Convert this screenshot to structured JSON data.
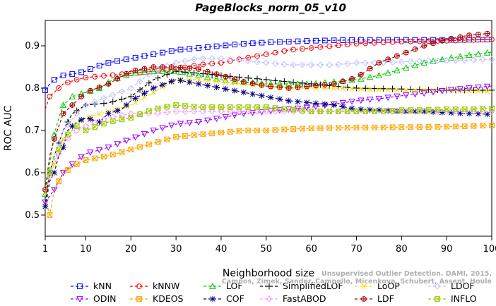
{
  "chart_data": {
    "type": "line",
    "title": "PageBlocks_norm_05_v10",
    "xlabel": "Neighborhood size",
    "ylabel": "ROC AUC",
    "xlim": [
      1,
      100
    ],
    "ylim": [
      0.45,
      0.96
    ],
    "xticks": [
      1,
      10,
      20,
      30,
      40,
      50,
      60,
      70,
      80,
      90,
      100
    ],
    "yticks": [
      0.5,
      0.6,
      0.7,
      0.8,
      0.9
    ],
    "grid": false,
    "legend_position": "bottom",
    "series": [
      {
        "name": "kNN",
        "color": "#0000ff",
        "marker": "square",
        "dash": "4,3",
        "points": [
          [
            1,
            0.795
          ],
          [
            2,
            0.81
          ],
          [
            3,
            0.82
          ],
          [
            5,
            0.83
          ],
          [
            8,
            0.835
          ],
          [
            10,
            0.84
          ],
          [
            12,
            0.85
          ],
          [
            15,
            0.86
          ],
          [
            20,
            0.87
          ],
          [
            25,
            0.88
          ],
          [
            30,
            0.89
          ],
          [
            35,
            0.895
          ],
          [
            40,
            0.9
          ],
          [
            45,
            0.905
          ],
          [
            50,
            0.908
          ],
          [
            55,
            0.91
          ],
          [
            60,
            0.912
          ],
          [
            70,
            0.914
          ],
          [
            80,
            0.914
          ],
          [
            90,
            0.914
          ],
          [
            100,
            0.915
          ]
        ]
      },
      {
        "name": "kNNW",
        "color": "#ff0000",
        "marker": "circle",
        "dash": "4,3",
        "points": [
          [
            1,
            0.75
          ],
          [
            2,
            0.78
          ],
          [
            3,
            0.79
          ],
          [
            5,
            0.81
          ],
          [
            8,
            0.82
          ],
          [
            10,
            0.825
          ],
          [
            15,
            0.83
          ],
          [
            20,
            0.835
          ],
          [
            25,
            0.84
          ],
          [
            30,
            0.845
          ],
          [
            35,
            0.855
          ],
          [
            40,
            0.86
          ],
          [
            45,
            0.87
          ],
          [
            50,
            0.88
          ],
          [
            55,
            0.89
          ],
          [
            60,
            0.895
          ],
          [
            70,
            0.905
          ],
          [
            80,
            0.91
          ],
          [
            90,
            0.912
          ],
          [
            100,
            0.915
          ]
        ]
      },
      {
        "name": "LOF",
        "color": "#00cc00",
        "marker": "triangle-up",
        "dash": "4,3",
        "points": [
          [
            1,
            0.55
          ],
          [
            2,
            0.62
          ],
          [
            3,
            0.69
          ],
          [
            4,
            0.73
          ],
          [
            5,
            0.76
          ],
          [
            7,
            0.78
          ],
          [
            10,
            0.79
          ],
          [
            13,
            0.8
          ],
          [
            16,
            0.82
          ],
          [
            20,
            0.835
          ],
          [
            25,
            0.84
          ],
          [
            30,
            0.84
          ],
          [
            35,
            0.83
          ],
          [
            40,
            0.82
          ],
          [
            45,
            0.815
          ],
          [
            50,
            0.81
          ],
          [
            55,
            0.81
          ],
          [
            60,
            0.81
          ],
          [
            65,
            0.815
          ],
          [
            70,
            0.82
          ],
          [
            75,
            0.83
          ],
          [
            80,
            0.845
          ],
          [
            85,
            0.86
          ],
          [
            90,
            0.87
          ],
          [
            95,
            0.878
          ],
          [
            100,
            0.885
          ]
        ]
      },
      {
        "name": "SimplifiedLOF",
        "color": "#000000",
        "marker": "plus",
        "dash": "4,3",
        "points": [
          [
            1,
            0.53
          ],
          [
            2,
            0.6
          ],
          [
            3,
            0.64
          ],
          [
            4,
            0.67
          ],
          [
            5,
            0.7
          ],
          [
            7,
            0.74
          ],
          [
            10,
            0.76
          ],
          [
            15,
            0.765
          ],
          [
            20,
            0.78
          ],
          [
            25,
            0.82
          ],
          [
            30,
            0.84
          ],
          [
            35,
            0.835
          ],
          [
            40,
            0.83
          ],
          [
            45,
            0.825
          ],
          [
            50,
            0.82
          ],
          [
            55,
            0.815
          ],
          [
            60,
            0.81
          ],
          [
            65,
            0.805
          ],
          [
            70,
            0.8
          ],
          [
            80,
            0.798
          ],
          [
            90,
            0.795
          ],
          [
            100,
            0.795
          ]
        ]
      },
      {
        "name": "LoOP",
        "color": "#ffd700",
        "marker": "x",
        "dash": "4,3",
        "points": [
          [
            1,
            0.52
          ],
          [
            2,
            0.58
          ],
          [
            3,
            0.62
          ],
          [
            4,
            0.65
          ],
          [
            5,
            0.68
          ],
          [
            7,
            0.71
          ],
          [
            10,
            0.73
          ],
          [
            15,
            0.745
          ],
          [
            20,
            0.76
          ],
          [
            25,
            0.79
          ],
          [
            30,
            0.82
          ],
          [
            35,
            0.82
          ],
          [
            40,
            0.815
          ],
          [
            45,
            0.81
          ],
          [
            50,
            0.805
          ],
          [
            55,
            0.8
          ],
          [
            60,
            0.8
          ],
          [
            65,
            0.8
          ],
          [
            70,
            0.798
          ],
          [
            80,
            0.795
          ],
          [
            90,
            0.795
          ],
          [
            100,
            0.792
          ]
        ]
      },
      {
        "name": "LDOF",
        "color": "#c0c0ff",
        "marker": "diamond",
        "dash": "4,3",
        "points": [
          [
            1,
            0.55
          ],
          [
            3,
            0.64
          ],
          [
            5,
            0.7
          ],
          [
            8,
            0.74
          ],
          [
            10,
            0.76
          ],
          [
            15,
            0.78
          ],
          [
            20,
            0.8
          ],
          [
            25,
            0.84
          ],
          [
            30,
            0.86
          ],
          [
            35,
            0.87
          ],
          [
            40,
            0.87
          ],
          [
            45,
            0.865
          ],
          [
            50,
            0.86
          ],
          [
            55,
            0.855
          ],
          [
            60,
            0.855
          ],
          [
            65,
            0.855
          ],
          [
            70,
            0.86
          ],
          [
            75,
            0.86
          ],
          [
            80,
            0.862
          ],
          [
            85,
            0.865
          ],
          [
            90,
            0.865
          ],
          [
            95,
            0.866
          ],
          [
            100,
            0.868
          ]
        ]
      },
      {
        "name": "ODIN",
        "color": "#9900ff",
        "marker": "triangle-down",
        "dash": "4,3",
        "points": [
          [
            1,
            0.53
          ],
          [
            3,
            0.56
          ],
          [
            5,
            0.6
          ],
          [
            8,
            0.63
          ],
          [
            10,
            0.645
          ],
          [
            15,
            0.66
          ],
          [
            20,
            0.68
          ],
          [
            25,
            0.7
          ],
          [
            30,
            0.715
          ],
          [
            35,
            0.72
          ],
          [
            40,
            0.73
          ],
          [
            45,
            0.74
          ],
          [
            50,
            0.745
          ],
          [
            55,
            0.75
          ],
          [
            60,
            0.755
          ],
          [
            65,
            0.762
          ],
          [
            70,
            0.77
          ],
          [
            75,
            0.775
          ],
          [
            80,
            0.782
          ],
          [
            85,
            0.788
          ],
          [
            90,
            0.795
          ],
          [
            95,
            0.8
          ],
          [
            100,
            0.805
          ]
        ]
      },
      {
        "name": "KDEOS",
        "color": "#ffa500",
        "marker": "square-x",
        "dash": "4,3",
        "points": [
          [
            1,
            0.55
          ],
          [
            2,
            0.5
          ],
          [
            3,
            0.56
          ],
          [
            5,
            0.6
          ],
          [
            8,
            0.62
          ],
          [
            10,
            0.63
          ],
          [
            15,
            0.64
          ],
          [
            20,
            0.655
          ],
          [
            25,
            0.67
          ],
          [
            30,
            0.685
          ],
          [
            35,
            0.69
          ],
          [
            40,
            0.695
          ],
          [
            45,
            0.7
          ],
          [
            50,
            0.7
          ],
          [
            55,
            0.703
          ],
          [
            60,
            0.705
          ],
          [
            65,
            0.706
          ],
          [
            70,
            0.707
          ],
          [
            75,
            0.707
          ],
          [
            80,
            0.708
          ],
          [
            85,
            0.708
          ],
          [
            90,
            0.709
          ],
          [
            95,
            0.71
          ],
          [
            100,
            0.712
          ]
        ]
      },
      {
        "name": "COF",
        "color": "#000080",
        "marker": "asterisk",
        "dash": "4,3",
        "points": [
          [
            1,
            0.52
          ],
          [
            2,
            0.58
          ],
          [
            3,
            0.6
          ],
          [
            4,
            0.64
          ],
          [
            5,
            0.66
          ],
          [
            6,
            0.7
          ],
          [
            8,
            0.72
          ],
          [
            10,
            0.73
          ],
          [
            13,
            0.72
          ],
          [
            15,
            0.74
          ],
          [
            18,
            0.75
          ],
          [
            20,
            0.77
          ],
          [
            25,
            0.8
          ],
          [
            30,
            0.82
          ],
          [
            35,
            0.81
          ],
          [
            40,
            0.8
          ],
          [
            45,
            0.79
          ],
          [
            50,
            0.78
          ],
          [
            55,
            0.77
          ],
          [
            60,
            0.765
          ],
          [
            65,
            0.76
          ],
          [
            70,
            0.75
          ],
          [
            75,
            0.748
          ],
          [
            80,
            0.745
          ],
          [
            85,
            0.745
          ],
          [
            90,
            0.742
          ],
          [
            95,
            0.74
          ],
          [
            100,
            0.738
          ]
        ]
      },
      {
        "name": "FastABOD",
        "color": "#ff99ff",
        "marker": "diamond",
        "dash": "4,3",
        "points": [
          [
            1,
            0.56
          ],
          [
            3,
            0.62
          ],
          [
            5,
            0.67
          ],
          [
            8,
            0.7
          ],
          [
            10,
            0.71
          ],
          [
            15,
            0.73
          ],
          [
            20,
            0.74
          ],
          [
            25,
            0.74
          ],
          [
            30,
            0.745
          ],
          [
            35,
            0.745
          ],
          [
            40,
            0.745
          ],
          [
            45,
            0.745
          ],
          [
            50,
            0.745
          ],
          [
            55,
            0.745
          ],
          [
            60,
            0.745
          ],
          [
            65,
            0.745
          ],
          [
            70,
            0.745
          ],
          [
            75,
            0.745
          ],
          [
            80,
            0.745
          ],
          [
            85,
            0.745
          ],
          [
            90,
            0.745
          ],
          [
            95,
            0.745
          ],
          [
            100,
            0.745
          ]
        ]
      },
      {
        "name": "LDF",
        "color": "#aa0000",
        "marker": "circle-plus",
        "dash": "4,3",
        "points": [
          [
            1,
            0.56
          ],
          [
            2,
            0.64
          ],
          [
            3,
            0.68
          ],
          [
            5,
            0.74
          ],
          [
            8,
            0.77
          ],
          [
            10,
            0.79
          ],
          [
            15,
            0.81
          ],
          [
            20,
            0.84
          ],
          [
            25,
            0.85
          ],
          [
            30,
            0.85
          ],
          [
            35,
            0.845
          ],
          [
            40,
            0.83
          ],
          [
            45,
            0.815
          ],
          [
            50,
            0.805
          ],
          [
            55,
            0.8
          ],
          [
            60,
            0.805
          ],
          [
            65,
            0.81
          ],
          [
            70,
            0.825
          ],
          [
            75,
            0.86
          ],
          [
            80,
            0.88
          ],
          [
            85,
            0.9
          ],
          [
            90,
            0.915
          ],
          [
            95,
            0.925
          ],
          [
            100,
            0.93
          ]
        ]
      },
      {
        "name": "INFLO",
        "color": "#99cc00",
        "marker": "square-x",
        "dash": "4,3",
        "points": [
          [
            1,
            0.55
          ],
          [
            2,
            0.6
          ],
          [
            3,
            0.63
          ],
          [
            5,
            0.68
          ],
          [
            8,
            0.71
          ],
          [
            10,
            0.7
          ],
          [
            15,
            0.72
          ],
          [
            20,
            0.73
          ],
          [
            25,
            0.75
          ],
          [
            30,
            0.76
          ],
          [
            35,
            0.755
          ],
          [
            40,
            0.755
          ],
          [
            45,
            0.755
          ],
          [
            50,
            0.755
          ],
          [
            55,
            0.75
          ],
          [
            60,
            0.745
          ],
          [
            65,
            0.745
          ],
          [
            70,
            0.745
          ],
          [
            75,
            0.745
          ],
          [
            80,
            0.748
          ],
          [
            85,
            0.748
          ],
          [
            90,
            0.75
          ],
          [
            95,
            0.75
          ],
          [
            100,
            0.752
          ]
        ]
      }
    ]
  },
  "watermark": {
    "line1": "Unsupervised Outlier Detection. DAMI, 2015.",
    "line2": "Campos, Zimek, Sander, Campello, Micenkova, Schubert, Assent, Houle"
  }
}
